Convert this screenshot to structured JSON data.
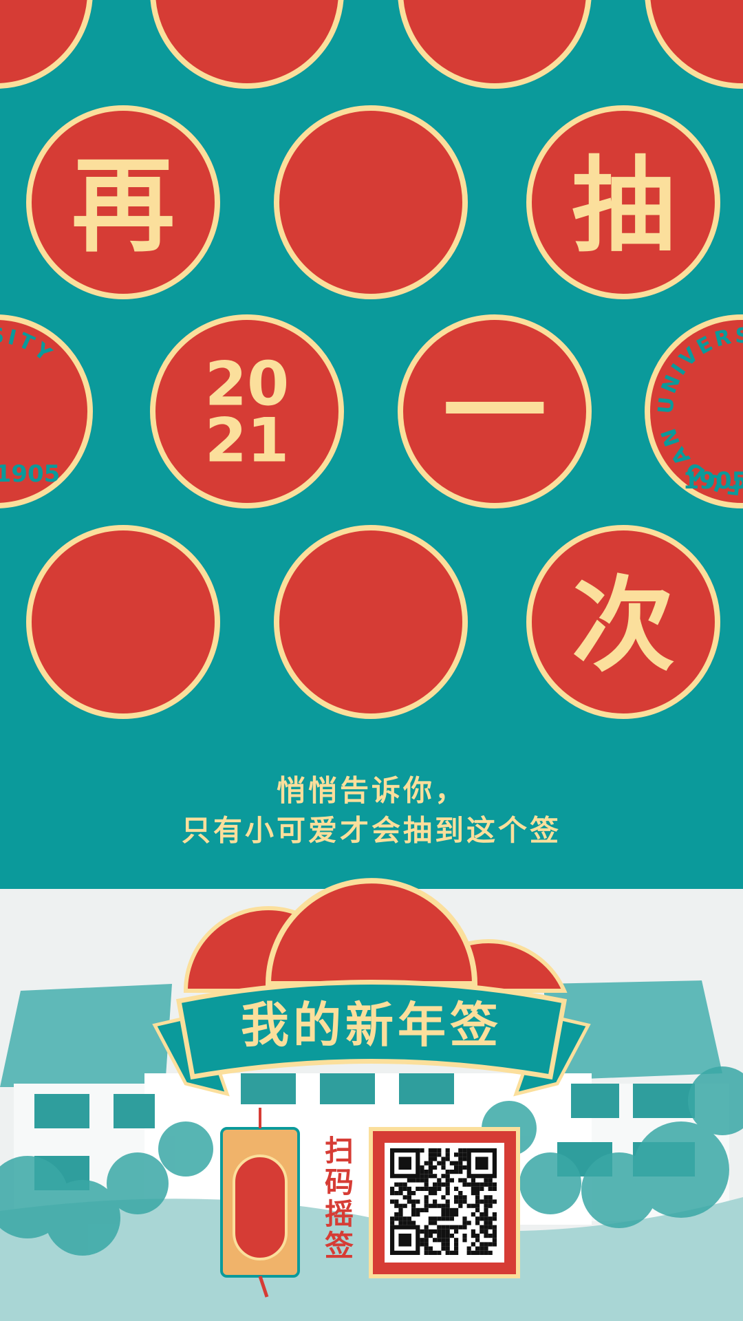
{
  "circle_texts": {
    "zai": "再",
    "chou": "抽",
    "year_top": "20",
    "year_bottom": "21",
    "yi": "一",
    "ci": "次"
  },
  "seal": {
    "name": "FUDAN UNIVERSITY",
    "year": "1905"
  },
  "message": [
    "悄悄告诉你，",
    "只有小可爱才会抽到这个签"
  ],
  "banner": "我的新年签",
  "scan_text": "扫码摇签"
}
